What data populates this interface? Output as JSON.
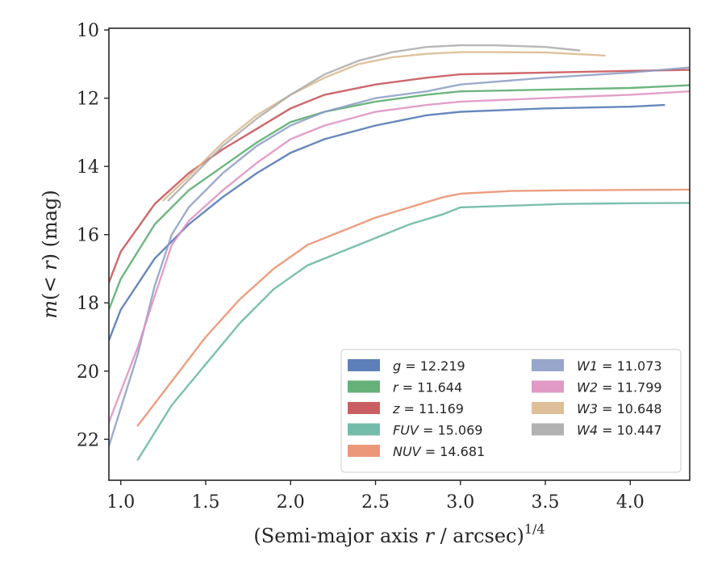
{
  "chart_data": {
    "type": "line",
    "xlabel": "(Semi-major axis r / arcsec)^{1/4}",
    "xlabel_parts": [
      "(Semi-major axis ",
      "r",
      " / arcsec)",
      "1/4"
    ],
    "ylabel_parts": [
      "m",
      "(< ",
      "r",
      ") (mag)"
    ],
    "xlim": [
      0.93,
      4.35
    ],
    "ylim": [
      23.2,
      9.95
    ],
    "y_inverted": true,
    "xticks": [
      1.0,
      1.5,
      2.0,
      2.5,
      3.0,
      3.5,
      4.0
    ],
    "xtick_labels": [
      "1.0",
      "1.5",
      "2.0",
      "2.5",
      "3.0",
      "3.5",
      "4.0"
    ],
    "yticks": [
      10,
      12,
      14,
      16,
      18,
      20,
      22
    ],
    "ytick_labels": [
      "10",
      "12",
      "14",
      "16",
      "18",
      "20",
      "22"
    ],
    "grid": false,
    "legend_position": "lower-right",
    "legend_columns": 2,
    "series": [
      {
        "name": "g",
        "label_value": "12.219",
        "color": "#4c72b0",
        "x": [
          0.93,
          1.0,
          1.2,
          1.4,
          1.6,
          1.8,
          2.0,
          2.2,
          2.5,
          2.8,
          3.0,
          3.5,
          4.0,
          4.2
        ],
        "y": [
          19.1,
          18.2,
          16.7,
          15.7,
          14.9,
          14.2,
          13.6,
          13.2,
          12.8,
          12.5,
          12.4,
          12.3,
          12.25,
          12.2
        ]
      },
      {
        "name": "r",
        "label_value": "11.644",
        "color": "#55a868",
        "x": [
          0.93,
          1.0,
          1.2,
          1.4,
          1.6,
          1.8,
          2.0,
          2.2,
          2.5,
          2.8,
          3.0,
          3.5,
          4.0,
          4.35
        ],
        "y": [
          18.2,
          17.3,
          15.7,
          14.7,
          14.0,
          13.3,
          12.7,
          12.4,
          12.1,
          11.9,
          11.8,
          11.75,
          11.7,
          11.62
        ]
      },
      {
        "name": "z",
        "label_value": "11.169",
        "color": "#c44e52",
        "x": [
          0.93,
          1.0,
          1.2,
          1.4,
          1.6,
          1.8,
          2.0,
          2.2,
          2.5,
          2.8,
          3.0,
          3.5,
          4.0,
          4.35
        ],
        "y": [
          17.4,
          16.5,
          15.1,
          14.2,
          13.5,
          12.9,
          12.3,
          11.9,
          11.6,
          11.4,
          11.3,
          11.25,
          11.2,
          11.17
        ]
      },
      {
        "name": "FUV",
        "label_value": "15.069",
        "color": "#64b5a0",
        "x": [
          1.1,
          1.3,
          1.5,
          1.7,
          1.9,
          2.1,
          2.3,
          2.5,
          2.7,
          2.9,
          3.0,
          3.3,
          3.6,
          4.0,
          4.35
        ],
        "y": [
          22.6,
          21.0,
          19.8,
          18.6,
          17.6,
          16.9,
          16.5,
          16.1,
          15.7,
          15.4,
          15.2,
          15.15,
          15.1,
          15.08,
          15.07
        ]
      },
      {
        "name": "NUV",
        "label_value": "14.681",
        "color": "#e98d6b",
        "x": [
          1.1,
          1.3,
          1.5,
          1.7,
          1.9,
          2.1,
          2.3,
          2.5,
          2.7,
          2.9,
          3.0,
          3.3,
          3.6,
          4.0,
          4.35
        ],
        "y": [
          21.6,
          20.3,
          19.0,
          17.9,
          17.0,
          16.3,
          15.9,
          15.5,
          15.2,
          14.9,
          14.8,
          14.72,
          14.7,
          14.69,
          14.68
        ]
      },
      {
        "name": "W1",
        "label_value": "11.073",
        "color": "#8c9cc4",
        "x": [
          0.93,
          1.1,
          1.2,
          1.3,
          1.4,
          1.6,
          1.8,
          2.0,
          2.2,
          2.5,
          2.8,
          3.0,
          3.5,
          4.0,
          4.35
        ],
        "y": [
          22.2,
          19.5,
          17.5,
          16.0,
          15.2,
          14.2,
          13.4,
          12.8,
          12.4,
          12.0,
          11.8,
          11.6,
          11.4,
          11.25,
          11.1
        ]
      },
      {
        "name": "W2",
        "label_value": "11.799",
        "color": "#dd8fbf",
        "x": [
          0.93,
          1.1,
          1.2,
          1.3,
          1.4,
          1.6,
          1.8,
          2.0,
          2.2,
          2.5,
          2.8,
          3.0,
          3.5,
          4.0,
          4.35
        ],
        "y": [
          21.5,
          19.3,
          17.8,
          16.3,
          15.6,
          14.7,
          13.9,
          13.2,
          12.8,
          12.4,
          12.2,
          12.1,
          12.0,
          11.9,
          11.8
        ]
      },
      {
        "name": "W3",
        "label_value": "10.648",
        "color": "#d9b98e",
        "x": [
          1.25,
          1.4,
          1.6,
          1.8,
          2.0,
          2.2,
          2.4,
          2.6,
          2.8,
          3.0,
          3.2,
          3.5,
          3.85
        ],
        "y": [
          15.0,
          14.3,
          13.3,
          12.5,
          11.9,
          11.4,
          11.0,
          10.8,
          10.7,
          10.65,
          10.65,
          10.66,
          10.75
        ]
      },
      {
        "name": "W4",
        "label_value": "10.447",
        "color": "#aaaaaa",
        "x": [
          1.28,
          1.4,
          1.6,
          1.8,
          2.0,
          2.2,
          2.4,
          2.6,
          2.8,
          3.0,
          3.2,
          3.5,
          3.7
        ],
        "y": [
          15.0,
          14.4,
          13.4,
          12.6,
          11.9,
          11.3,
          10.9,
          10.65,
          10.5,
          10.45,
          10.45,
          10.5,
          10.6
        ]
      }
    ]
  }
}
